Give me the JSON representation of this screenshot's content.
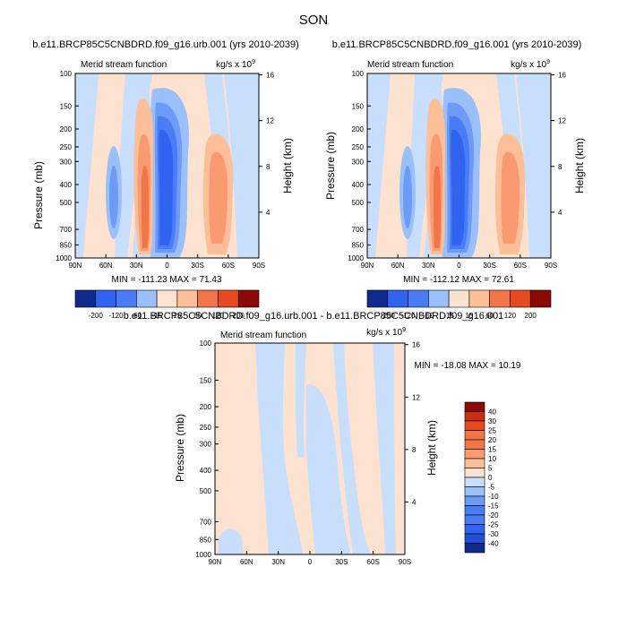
{
  "figure_title": "SON",
  "colors": {
    "neg": [
      "#0d2a8c",
      "#1f4fd6",
      "#2f63f0",
      "#4a7df5",
      "#6d9bf7",
      "#9ac0fb",
      "#c7defc"
    ],
    "pos": [
      "#fde3cf",
      "#fcbf98",
      "#f99a70",
      "#f27548",
      "#e54b1e",
      "#c52e0e",
      "#8b0a04"
    ]
  },
  "chart_data": [
    {
      "type": "contour",
      "title": "b.e11.BRCP85C5CNBDRD.f09_g16.urb.001 (yrs 2010-2039)",
      "left_label": "Merid stream function",
      "right_label": "kg/s x 10",
      "right_label_exp": "9",
      "ylabel": "Pressure (mb)",
      "ylabel_right": "Height (km)",
      "x_ticks": [
        "90N",
        "60N",
        "30N",
        "0",
        "30S",
        "60S",
        "90S"
      ],
      "y_ticks": [
        "100",
        "150",
        "200",
        "250",
        "300",
        "400",
        "500",
        "700",
        "850",
        "1000"
      ],
      "y_right_ticks": [
        "16",
        "12",
        "8",
        "4"
      ],
      "min_max": "MIN = -111.23   MAX =  71.43",
      "levels": [
        -200,
        -120,
        -60,
        -15,
        15,
        60,
        120,
        200
      ],
      "colorbar_labels": [
        "-200",
        "-120",
        "-60",
        "-15",
        "15",
        "60",
        "120",
        "200"
      ]
    },
    {
      "type": "contour",
      "title": "b.e11.BRCP85C5CNBDRD.f09_g16.001 (yrs 2010-2039)",
      "left_label": "Merid stream function",
      "right_label": "kg/s x 10",
      "right_label_exp": "9",
      "ylabel": "Pressure (mb)",
      "ylabel_right": "Height (km)",
      "x_ticks": [
        "90N",
        "60N",
        "30N",
        "0",
        "30S",
        "60S",
        "90S"
      ],
      "y_ticks": [
        "100",
        "150",
        "200",
        "250",
        "300",
        "400",
        "500",
        "700",
        "850",
        "1000"
      ],
      "y_right_ticks": [
        "16",
        "12",
        "8",
        "4"
      ],
      "min_max": "MIN = -112.12   MAX =  72.61",
      "levels": [
        -200,
        -120,
        -60,
        -15,
        15,
        60,
        120,
        200
      ],
      "colorbar_labels": [
        "-200",
        "-120",
        "-60",
        "-15",
        "15",
        "60",
        "120",
        "200"
      ]
    },
    {
      "type": "contour",
      "title": "b.e11.BRCP85C5CNBDRD.f09_g16.urb.001 - b.e11.BRCP85C5CNBDRD.f09_g16.001",
      "left_label": "Merid stream function",
      "right_label": "kg/s x 10",
      "right_label_exp": "9",
      "ylabel": "Pressure (mb)",
      "ylabel_right": "Height (km)",
      "x_ticks": [
        "90N",
        "60N",
        "30N",
        "0",
        "30S",
        "60S",
        "90S"
      ],
      "y_ticks": [
        "100",
        "150",
        "200",
        "250",
        "300",
        "400",
        "500",
        "700",
        "850",
        "1000"
      ],
      "y_right_ticks": [
        "16",
        "12",
        "8",
        "4"
      ],
      "min_max": "MIN = -18.08  MAX =  10.19",
      "levels": [
        -40,
        -30,
        -25,
        -20,
        -15,
        -10,
        -5,
        0,
        5,
        10,
        15,
        20,
        25,
        30,
        40
      ],
      "colorbar_labels": [
        "40",
        "30",
        "25",
        "20",
        "15",
        "10",
        "5",
        "0",
        "-5",
        "-10",
        "-15",
        "-20",
        "-25",
        "-30",
        "-40"
      ]
    }
  ]
}
